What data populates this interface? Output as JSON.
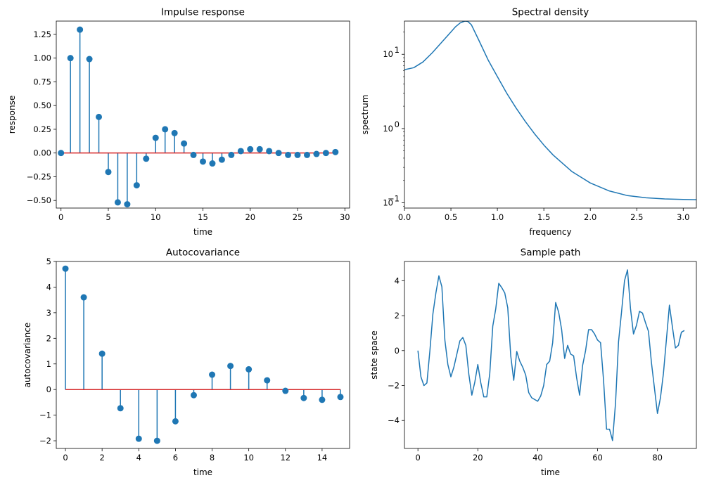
{
  "colors": {
    "series": "#1f77b4",
    "baseline": "#d62728",
    "axis": "#000000"
  },
  "chart_data": [
    {
      "type": "stem",
      "title": "Impulse response",
      "xlabel": "time",
      "ylabel": "response",
      "xlim": [
        -0.5,
        30.5
      ],
      "ylim": [
        -0.58,
        1.39
      ],
      "xticks": [
        0,
        5,
        10,
        15,
        20,
        25,
        30
      ],
      "xtick_labels": [
        "0",
        "5",
        "10",
        "15",
        "20",
        "25",
        "30"
      ],
      "yticks": [
        -0.5,
        -0.25,
        0,
        0.25,
        0.5,
        0.75,
        1.0,
        1.25
      ],
      "ytick_labels": [
        "−0.50",
        "−0.25",
        "0.00",
        "0.25",
        "0.50",
        "0.75",
        "1.00",
        "1.25"
      ],
      "x": [
        0,
        1,
        2,
        3,
        4,
        5,
        6,
        7,
        8,
        9,
        10,
        11,
        12,
        13,
        14,
        15,
        16,
        17,
        18,
        19,
        20,
        21,
        22,
        23,
        24,
        25,
        26,
        27,
        28,
        29
      ],
      "values": [
        0.0,
        1.0,
        1.3,
        0.99,
        0.38,
        -0.2,
        -0.52,
        -0.54,
        -0.34,
        -0.06,
        0.16,
        0.25,
        0.21,
        0.1,
        -0.02,
        -0.09,
        -0.11,
        -0.07,
        -0.02,
        0.02,
        0.04,
        0.04,
        0.02,
        0.0,
        -0.02,
        -0.02,
        -0.02,
        -0.01,
        0.0,
        0.01
      ]
    },
    {
      "type": "line",
      "yscale": "log",
      "title": "Spectral density",
      "xlabel": "frequency",
      "ylabel": "spectrum",
      "xlim": [
        0,
        3.1416
      ],
      "ylim": [
        0.085,
        28
      ],
      "xticks": [
        0,
        0.5,
        1.0,
        1.5,
        2.0,
        2.5,
        3.0
      ],
      "xtick_labels": [
        "0.0",
        "0.5",
        "1.0",
        "1.5",
        "2.0",
        "2.5",
        "3.0"
      ],
      "yticks": [
        0.1,
        1,
        10
      ],
      "ytick_base": "10",
      "ytick_exponents": [
        "−1",
        "0",
        "1"
      ],
      "x": [
        0,
        0.1,
        0.2,
        0.3,
        0.4,
        0.5,
        0.55,
        0.6,
        0.65,
        0.68,
        0.72,
        0.8,
        0.9,
        1.0,
        1.1,
        1.2,
        1.3,
        1.4,
        1.5,
        1.6,
        1.8,
        2.0,
        2.2,
        2.4,
        2.6,
        2.8,
        3.0,
        3.1416
      ],
      "values": [
        6.2,
        6.6,
        7.9,
        10.5,
        14.5,
        20,
        23.5,
        26.5,
        28,
        27.8,
        25,
        15.5,
        8.4,
        5.0,
        3.0,
        1.9,
        1.25,
        0.85,
        0.6,
        0.44,
        0.265,
        0.185,
        0.145,
        0.125,
        0.117,
        0.113,
        0.111,
        0.11
      ]
    },
    {
      "type": "stem",
      "title": "Autocovariance",
      "xlabel": "time",
      "ylabel": "autocovariance",
      "xlim": [
        -0.5,
        15.5
      ],
      "ylim": [
        -2.3,
        5.0
      ],
      "xticks": [
        0,
        2,
        4,
        6,
        8,
        10,
        12,
        14
      ],
      "xtick_labels": [
        "0",
        "2",
        "4",
        "6",
        "8",
        "10",
        "12",
        "14"
      ],
      "yticks": [
        -2,
        -1,
        0,
        1,
        2,
        3,
        4,
        5
      ],
      "ytick_labels": [
        "−2",
        "−1",
        "0",
        "1",
        "2",
        "3",
        "4",
        "5"
      ],
      "x": [
        0,
        1,
        2,
        3,
        4,
        5,
        6,
        7,
        8,
        9,
        10,
        11,
        12,
        13,
        14,
        15
      ],
      "values": [
        4.72,
        3.6,
        1.4,
        -0.73,
        -1.92,
        -2.0,
        -1.24,
        -0.22,
        0.58,
        0.92,
        0.79,
        0.36,
        -0.05,
        -0.33,
        -0.4,
        -0.29
      ]
    },
    {
      "type": "line",
      "title": "Sample path",
      "xlabel": "time",
      "ylabel": "state space",
      "xlim": [
        -4.5,
        93
      ],
      "ylim": [
        -5.6,
        5.1
      ],
      "xticks": [
        0,
        20,
        40,
        60,
        80
      ],
      "xtick_labels": [
        "0",
        "20",
        "40",
        "60",
        "80"
      ],
      "yticks": [
        -4,
        -2,
        0,
        2,
        4
      ],
      "ytick_labels": [
        "−4",
        "−2",
        "0",
        "2",
        "4"
      ],
      "x": [
        0,
        1,
        2,
        3,
        4,
        5,
        6,
        7,
        8,
        9,
        10,
        11,
        12,
        13,
        14,
        15,
        16,
        17,
        18,
        19,
        20,
        21,
        22,
        23,
        24,
        25,
        26,
        27,
        28,
        29,
        30,
        31,
        32,
        33,
        34,
        35,
        36,
        37,
        38,
        39,
        40,
        41,
        42,
        43,
        44,
        45,
        46,
        47,
        48,
        49,
        50,
        51,
        52,
        53,
        54,
        55,
        56,
        57,
        58,
        59,
        60,
        61,
        62,
        63,
        64,
        65,
        66,
        67,
        68,
        69,
        70,
        71,
        72,
        73,
        74,
        75,
        76,
        77,
        78,
        79,
        80,
        81,
        82,
        83,
        84,
        85,
        86,
        87,
        88,
        89
      ],
      "values": [
        0.0,
        -1.5,
        -2.0,
        -1.85,
        0.0,
        2.1,
        3.3,
        4.28,
        3.65,
        0.6,
        -0.8,
        -1.5,
        -0.95,
        -0.2,
        0.55,
        0.75,
        0.3,
        -1.35,
        -2.55,
        -1.8,
        -0.8,
        -1.85,
        -2.65,
        -2.65,
        -1.3,
        1.4,
        2.4,
        3.85,
        3.6,
        3.3,
        2.45,
        -0.3,
        -1.7,
        -0.05,
        -0.6,
        -0.95,
        -1.4,
        -2.4,
        -2.7,
        -2.8,
        -2.9,
        -2.6,
        -2.0,
        -0.8,
        -0.6,
        0.45,
        2.75,
        2.2,
        1.2,
        -0.45,
        0.3,
        -0.2,
        -0.3,
        -1.55,
        -2.55,
        -0.85,
        0.0,
        1.2,
        1.2,
        0.95,
        0.6,
        0.45,
        -1.7,
        -4.5,
        -4.5,
        -5.15,
        -3.0,
        0.5,
        2.2,
        4.0,
        4.62,
        2.4,
        0.95,
        1.45,
        2.25,
        2.15,
        1.6,
        1.1,
        -0.7,
        -2.15,
        -3.6,
        -2.7,
        -1.3,
        0.65,
        2.6,
        1.35,
        0.15,
        0.3,
        1.05,
        1.15
      ]
    }
  ]
}
